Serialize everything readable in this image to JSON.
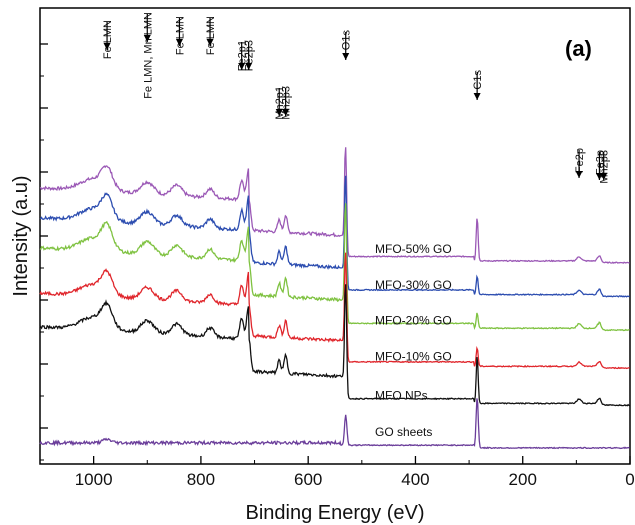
{
  "chart_data": {
    "type": "line",
    "title": "",
    "panel_label": "(a)",
    "xlabel": "Binding Energy (eV)",
    "ylabel": "Intensity (a.u)",
    "xlim": [
      1100,
      0
    ],
    "xticks": [
      1000,
      800,
      600,
      400,
      200,
      0
    ],
    "grid": false,
    "series": [
      {
        "name": "MFO-50% GO",
        "color": "#9b59b6",
        "offset": 5.6,
        "base": 0.35,
        "scale": 1.0
      },
      {
        "name": "MFO-30% GO",
        "color": "#2c4db0",
        "offset": 4.55,
        "base": 0.4,
        "scale": 1.05
      },
      {
        "name": "MFO-20% GO",
        "color": "#7fc241",
        "offset": 3.5,
        "base": 0.45,
        "scale": 1.1
      },
      {
        "name": "MFO-10% GO",
        "color": "#e0262c",
        "offset": 2.45,
        "base": 0.4,
        "scale": 1.0
      },
      {
        "name": "MFO NPs",
        "color": "#111111",
        "offset": 1.3,
        "base": 0.45,
        "scale": 1.05
      },
      {
        "name": "GO sheets",
        "color": "#6a3d9a",
        "offset": 0.5,
        "base": 0.1,
        "scale": 0.4
      }
    ],
    "peaks": [
      {
        "label": "Fe LMN",
        "x": 975
      },
      {
        "label": "Fe LMN, Mn LMN",
        "x": 900
      },
      {
        "label": "Fe LMN",
        "x": 840
      },
      {
        "label": "Fe LMN",
        "x": 783
      },
      {
        "label": "Fe2p1",
        "x": 724
      },
      {
        "label": "Fe2p3",
        "x": 711
      },
      {
        "label": "Mn2p1",
        "x": 654
      },
      {
        "label": "Mn2p3",
        "x": 642
      },
      {
        "label": "O1s",
        "x": 530
      },
      {
        "label": "C1s",
        "x": 285
      },
      {
        "label": "Fe2p",
        "x": 95
      },
      {
        "label": "Fe3p",
        "x": 57
      },
      {
        "label": "Mn2p3",
        "x": 49
      }
    ]
  }
}
